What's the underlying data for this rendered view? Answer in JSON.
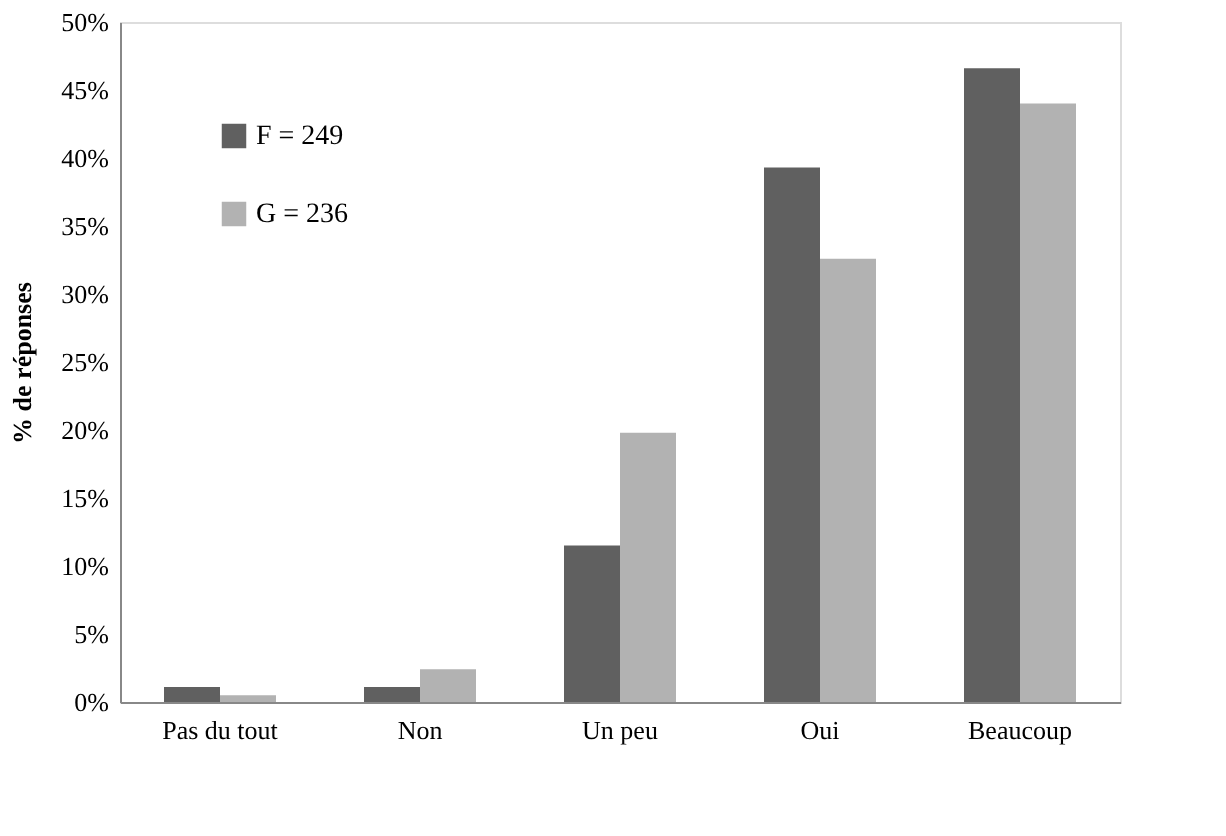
{
  "chart_data": {
    "type": "bar",
    "ylabel": "% de réponses",
    "categories": [
      "Pas du\ntout",
      "Non",
      "Un peu",
      "Oui",
      "Beaucoup"
    ],
    "series": [
      {
        "name": "F = 249",
        "color": "#606060",
        "values": [
          1.1,
          1.1,
          11.5,
          39.3,
          46.6
        ]
      },
      {
        "name": "G = 236",
        "color": "#b2b2b2",
        "values": [
          0.5,
          2.4,
          19.8,
          32.6,
          44.0
        ]
      }
    ],
    "ylim": [
      0,
      50
    ],
    "yticks": [
      {
        "value": 0,
        "label": "0%"
      },
      {
        "value": 5,
        "label": "5%"
      },
      {
        "value": 10,
        "label": "10%"
      },
      {
        "value": 15,
        "label": "15%"
      },
      {
        "value": 20,
        "label": "20%"
      },
      {
        "value": 25,
        "label": "25%"
      },
      {
        "value": 30,
        "label": "30%"
      },
      {
        "value": 35,
        "label": "35%"
      },
      {
        "value": 40,
        "label": "40%"
      },
      {
        "value": 45,
        "label": "45%"
      },
      {
        "value": 50,
        "label": "50%"
      }
    ],
    "grid": false,
    "legend": "top left"
  }
}
